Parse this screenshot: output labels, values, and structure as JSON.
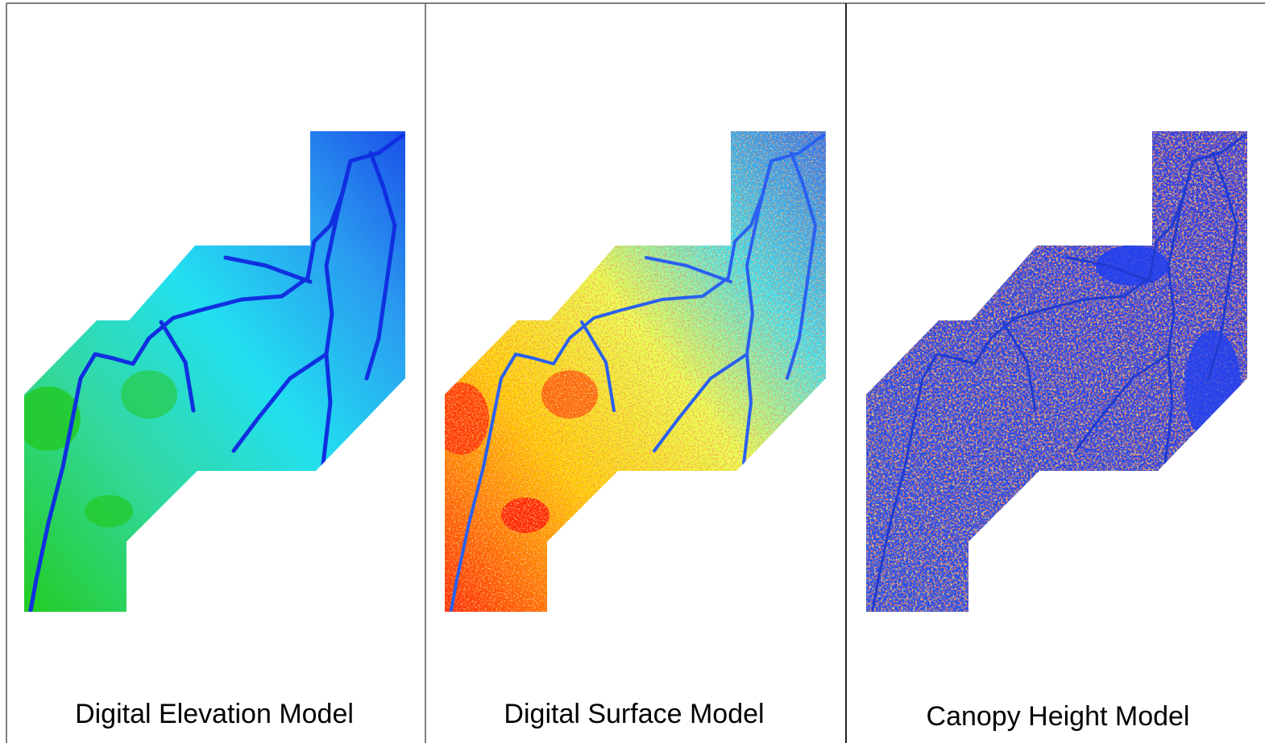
{
  "panels": [
    {
      "label": "Digital Elevation Model"
    },
    {
      "label": "Digital Surface Model"
    },
    {
      "label": "Canopy Height Model"
    }
  ]
}
